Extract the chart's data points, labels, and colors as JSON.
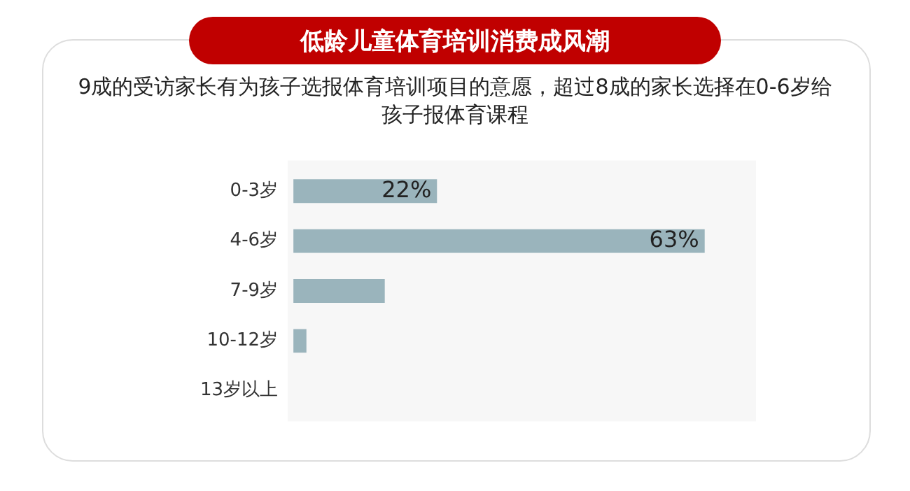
{
  "chart_data": {
    "type": "bar",
    "orientation": "horizontal",
    "title": "低龄儿童体育培训消费成风潮",
    "subtitle": "9成的受访家长有为孩子选报体育培训项目的意愿，超过8成的家长选择在0-6岁给孩子报体育课程",
    "categories": [
      "0-3岁",
      "4-6岁",
      "7-9岁",
      "10-12岁",
      "13岁以上"
    ],
    "values": [
      22,
      63,
      14,
      2,
      0
    ],
    "value_labels": [
      "22%",
      "63%",
      null,
      null,
      null
    ],
    "color": "#9ab4bc",
    "tick_labels": "y"
  }
}
